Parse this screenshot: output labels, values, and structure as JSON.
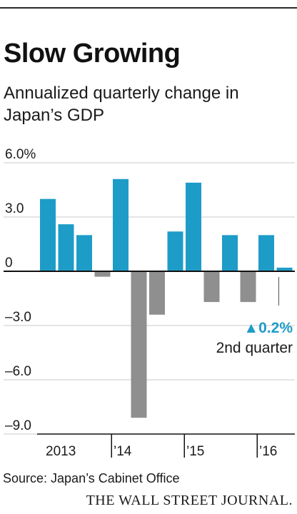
{
  "chart_data": {
    "type": "bar",
    "title": "Slow Growing",
    "subtitle": "Annualized quarterly change in Japan’s GDP",
    "ylim": [
      -9,
      6
    ],
    "yticks": [
      {
        "value": 6,
        "label": "6.0%"
      },
      {
        "value": 3,
        "label": "3.0"
      },
      {
        "value": 0,
        "label": "0"
      },
      {
        "value": -3,
        "label": "–3.0"
      },
      {
        "value": -6,
        "label": "–6.0"
      },
      {
        "value": -9,
        "label": "–9.0"
      }
    ],
    "x_labels": [
      {
        "label": "2013",
        "start": 0
      },
      {
        "label": "’14",
        "start": 4
      },
      {
        "label": "’15",
        "start": 8
      },
      {
        "label": "’16",
        "start": 12
      }
    ],
    "values": [
      4.0,
      2.6,
      2.0,
      -0.3,
      5.1,
      -8.1,
      -2.4,
      2.2,
      4.9,
      -1.7,
      2.0,
      -1.7,
      2.0,
      0.2
    ],
    "colors": {
      "positive": "#1e9cc8",
      "negative": "#8f8f8f",
      "grid": "#c9c9c9",
      "axis": "#111111"
    },
    "annotation": {
      "value_text": "▲0.2%",
      "label": "2nd quarter",
      "index": 13
    }
  },
  "source": "Source: Japan’s Cabinet Office",
  "brand": "THE WALL STREET JOURNAL."
}
